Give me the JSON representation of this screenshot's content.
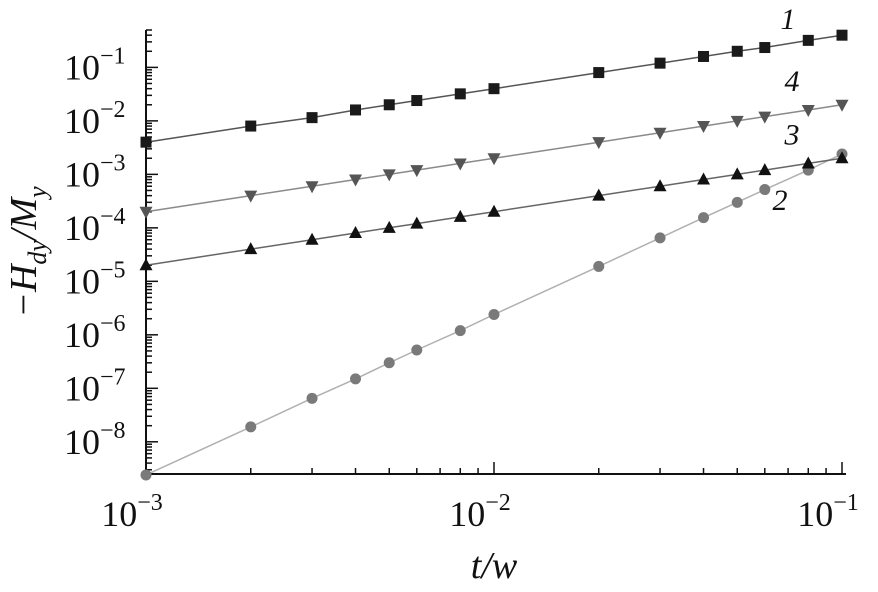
{
  "chart_data": {
    "type": "scatter",
    "title": "",
    "xlabel": "t/w",
    "ylabel": "−H_dy/M_y",
    "x_scale": "log",
    "y_scale": "log",
    "xlim": [
      0.001,
      0.1
    ],
    "ylim": [
      2.5e-09,
      0.5
    ],
    "grid": false,
    "x_ticks": [
      {
        "value": 0.001,
        "base": "10",
        "exp": "−3"
      },
      {
        "value": 0.01,
        "base": "10",
        "exp": "−2"
      },
      {
        "value": 0.1,
        "base": "10",
        "exp": "−1"
      }
    ],
    "y_ticks": [
      {
        "value": 1e-08,
        "base": "10",
        "exp": "−8"
      },
      {
        "value": 1e-07,
        "base": "10",
        "exp": "−7"
      },
      {
        "value": 1e-06,
        "base": "10",
        "exp": "−6"
      },
      {
        "value": 1e-05,
        "base": "10",
        "exp": "−5"
      },
      {
        "value": 0.0001,
        "base": "10",
        "exp": "−4"
      },
      {
        "value": 0.001,
        "base": "10",
        "exp": "−3"
      },
      {
        "value": 0.01,
        "base": "10",
        "exp": "−2"
      },
      {
        "value": 0.1,
        "base": "10",
        "exp": "−1"
      }
    ],
    "series": [
      {
        "name": "1",
        "marker": "square",
        "color": "#1a1a1a",
        "line_color": "#555555",
        "x": [
          0.001,
          0.002,
          0.003,
          0.004,
          0.005,
          0.006,
          0.008,
          0.01,
          0.02,
          0.03,
          0.04,
          0.05,
          0.06,
          0.08,
          0.1
        ],
        "y": [
          0.004,
          0.008,
          0.0115,
          0.016,
          0.02,
          0.024,
          0.032,
          0.04,
          0.08,
          0.12,
          0.16,
          0.2,
          0.235,
          0.32,
          0.4
        ]
      },
      {
        "name": "2",
        "marker": "circle",
        "color": "#7a7a7a",
        "line_color": "#b0b0b0",
        "x": [
          0.001,
          0.002,
          0.003,
          0.004,
          0.005,
          0.006,
          0.008,
          0.01,
          0.02,
          0.03,
          0.04,
          0.05,
          0.06,
          0.08,
          0.1
        ],
        "y": [
          2.4e-09,
          1.9e-08,
          6.5e-08,
          1.5e-07,
          3e-07,
          5.2e-07,
          1.2e-06,
          2.4e-06,
          1.9e-05,
          6.5e-05,
          0.000155,
          0.0003,
          0.00052,
          0.0012,
          0.0024
        ]
      },
      {
        "name": "3",
        "marker": "triangle-up",
        "color": "#111111",
        "line_color": "#666666",
        "x": [
          0.001,
          0.002,
          0.003,
          0.004,
          0.005,
          0.006,
          0.008,
          0.01,
          0.02,
          0.03,
          0.04,
          0.05,
          0.06,
          0.08,
          0.1
        ],
        "y": [
          2e-05,
          4e-05,
          6e-05,
          8e-05,
          0.0001,
          0.00012,
          0.00016,
          0.0002,
          0.0004,
          0.0006,
          0.0008,
          0.001,
          0.0012,
          0.0016,
          0.002
        ]
      },
      {
        "name": "4",
        "marker": "triangle-down",
        "color": "#555555",
        "line_color": "#8a8a8a",
        "x": [
          0.001,
          0.002,
          0.003,
          0.004,
          0.005,
          0.006,
          0.008,
          0.01,
          0.02,
          0.03,
          0.04,
          0.05,
          0.06,
          0.08,
          0.1
        ],
        "y": [
          0.0002,
          0.0004,
          0.0006,
          0.0008,
          0.001,
          0.0012,
          0.0016,
          0.002,
          0.004,
          0.006,
          0.008,
          0.01,
          0.012,
          0.016,
          0.02
        ]
      }
    ],
    "series_labels": [
      {
        "text": "1",
        "x": 0.1,
        "y": 0.4,
        "anchor": "upper-left-of-end"
      },
      {
        "text": "4",
        "x": 0.1,
        "y": 0.02,
        "anchor": "upper-left-of-end"
      },
      {
        "text": "3",
        "x": 0.1,
        "y": 0.002,
        "anchor": "upper-left-of-end"
      },
      {
        "text": "2",
        "x": 0.1,
        "y": 0.0024,
        "anchor": "below-left-of-end"
      }
    ]
  }
}
